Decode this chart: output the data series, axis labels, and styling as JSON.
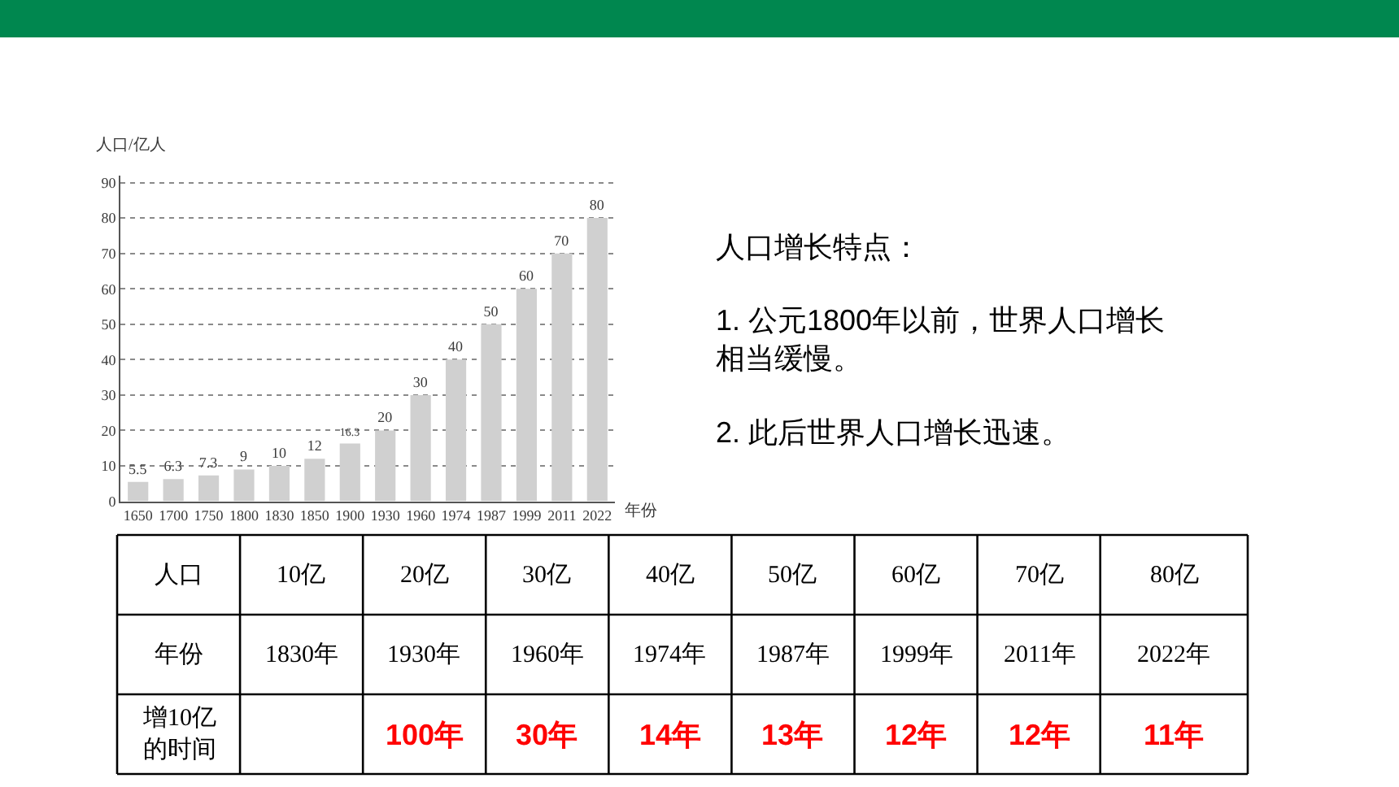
{
  "chart_data": [
    {
      "type": "bar",
      "ylabel": "人口/亿人",
      "xlabel": "年份",
      "categories": [
        "1650",
        "1700",
        "1750",
        "1800",
        "1830",
        "1850",
        "1900",
        "1930",
        "1960",
        "1974",
        "1987",
        "1999",
        "2011",
        "2022"
      ],
      "values": [
        5.5,
        6.3,
        7.3,
        9,
        10,
        12,
        16.3,
        20,
        30,
        40,
        50,
        60,
        70,
        80
      ],
      "color": "#d0d0d0",
      "data_labels": true,
      "ylim": [
        0,
        92
      ],
      "yticks": [
        0,
        10,
        20,
        30,
        40,
        50,
        60,
        70,
        80,
        90
      ],
      "grid": "y"
    },
    {
      "type": "other",
      "title": "人口增长特点：",
      "annotations": [
        "1. 公元1800年以前，世界人口增长相当缓慢。",
        "2. 此后世界人口增长迅速。"
      ]
    },
    {
      "type": "heatmap",
      "xlabel": "人口",
      "categories": [
        "10亿",
        "20亿",
        "30亿",
        "40亿",
        "50亿",
        "60亿",
        "70亿",
        "80亿"
      ],
      "y_categories": [
        "年份",
        "增10亿的时间"
      ],
      "cells": [
        [
          1830,
          1930,
          1960,
          1974,
          1987,
          1999,
          2011,
          2022
        ],
        [
          null,
          100,
          30,
          14,
          13,
          12,
          12,
          11
        ]
      ],
      "cell_labels": [
        [
          "1830年",
          "1930年",
          "1960年",
          "1974年",
          "1987年",
          "1999年",
          "2011年",
          "2022年"
        ],
        [
          null,
          "100年",
          "30年",
          "14年",
          "13年",
          "12年",
          "12年",
          "11年"
        ]
      ],
      "colors": [
        "#000000",
        "#ff0000"
      ]
    }
  ]
}
